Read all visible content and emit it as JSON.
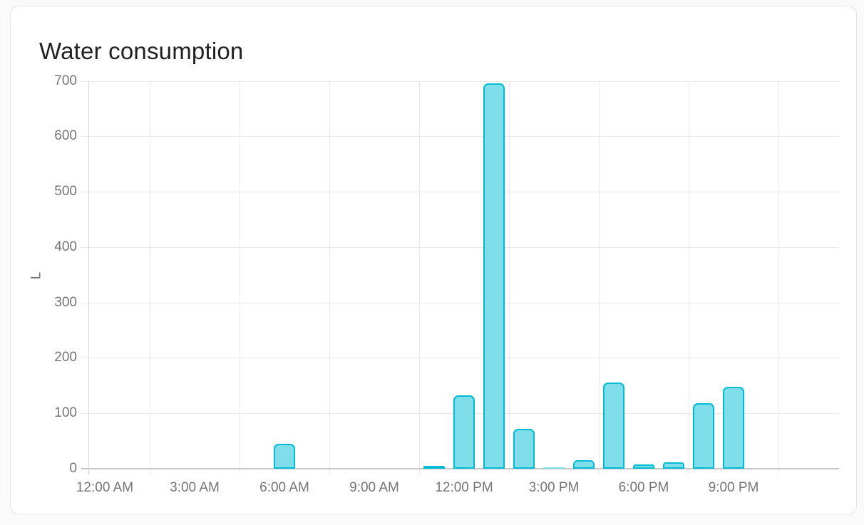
{
  "card": {
    "title": "Water consumption"
  },
  "chart_data": {
    "type": "bar",
    "title": "Water consumption",
    "ylabel": "L",
    "unit": "L",
    "ylim": [
      0,
      700
    ],
    "y_ticks": [
      0,
      100,
      200,
      300,
      400,
      500,
      600,
      700
    ],
    "x_tick_labels": [
      "12:00 AM",
      "3:00 AM",
      "6:00 AM",
      "9:00 AM",
      "12:00 PM",
      "3:00 PM",
      "6:00 PM",
      "9:00 PM"
    ],
    "grid": true,
    "legend": false,
    "categories": [
      "12:00 AM",
      "1:00 AM",
      "2:00 AM",
      "3:00 AM",
      "4:00 AM",
      "5:00 AM",
      "6:00 AM",
      "7:00 AM",
      "8:00 AM",
      "9:00 AM",
      "10:00 AM",
      "11:00 AM",
      "12:00 PM",
      "1:00 PM",
      "2:00 PM",
      "3:00 PM",
      "4:00 PM",
      "5:00 PM",
      "6:00 PM",
      "7:00 PM",
      "8:00 PM",
      "9:00 PM",
      "10:00 PM",
      "11:00 PM"
    ],
    "values": [
      0,
      0,
      0,
      0,
      0,
      0,
      45,
      0,
      0,
      0,
      0,
      5,
      132,
      695,
      72,
      2,
      15,
      155,
      8,
      12,
      118,
      148,
      0,
      0
    ],
    "colors": {
      "bar_border": "#00bcd4",
      "bar_fill": "#80deea",
      "grid_line": "#e9e9e9",
      "axis_line": "#c7c7c7",
      "label_text": "#757575",
      "title_text": "#212121"
    }
  }
}
